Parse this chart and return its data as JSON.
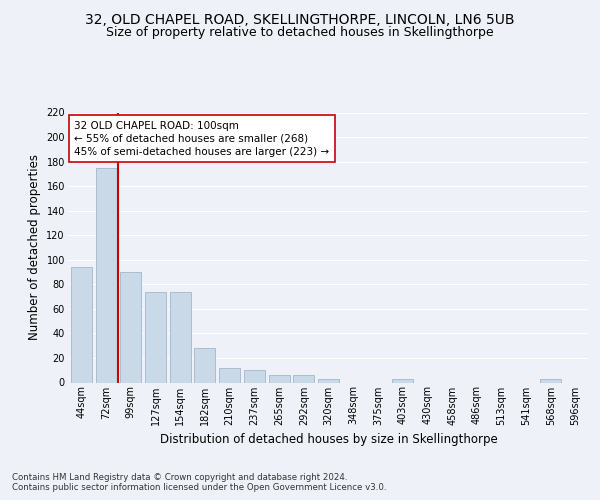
{
  "title1": "32, OLD CHAPEL ROAD, SKELLINGTHORPE, LINCOLN, LN6 5UB",
  "title2": "Size of property relative to detached houses in Skellingthorpe",
  "xlabel": "Distribution of detached houses by size in Skellingthorpe",
  "ylabel": "Number of detached properties",
  "categories": [
    "44sqm",
    "72sqm",
    "99sqm",
    "127sqm",
    "154sqm",
    "182sqm",
    "210sqm",
    "237sqm",
    "265sqm",
    "292sqm",
    "320sqm",
    "348sqm",
    "375sqm",
    "403sqm",
    "430sqm",
    "458sqm",
    "486sqm",
    "513sqm",
    "541sqm",
    "568sqm",
    "596sqm"
  ],
  "values": [
    94,
    175,
    90,
    74,
    74,
    28,
    12,
    10,
    6,
    6,
    3,
    0,
    0,
    3,
    0,
    0,
    0,
    0,
    0,
    3,
    0
  ],
  "bar_color": "#c9d9e8",
  "bar_edge_color": "#a0b8cc",
  "vline_color": "#cc0000",
  "annotation_text": "32 OLD CHAPEL ROAD: 100sqm\n← 55% of detached houses are smaller (268)\n45% of semi-detached houses are larger (223) →",
  "annotation_box_color": "#ffffff",
  "annotation_box_edge_color": "#cc0000",
  "ylim": [
    0,
    220
  ],
  "yticks": [
    0,
    20,
    40,
    60,
    80,
    100,
    120,
    140,
    160,
    180,
    200,
    220
  ],
  "footer_text": "Contains HM Land Registry data © Crown copyright and database right 2024.\nContains public sector information licensed under the Open Government Licence v3.0.",
  "bg_color": "#eef2f8",
  "plot_bg_color": "#eef2f8",
  "grid_color": "#ffffff",
  "title_fontsize": 10,
  "subtitle_fontsize": 9,
  "tick_fontsize": 7,
  "ylabel_fontsize": 8.5,
  "xlabel_fontsize": 8.5,
  "annotation_fontsize": 7.5
}
